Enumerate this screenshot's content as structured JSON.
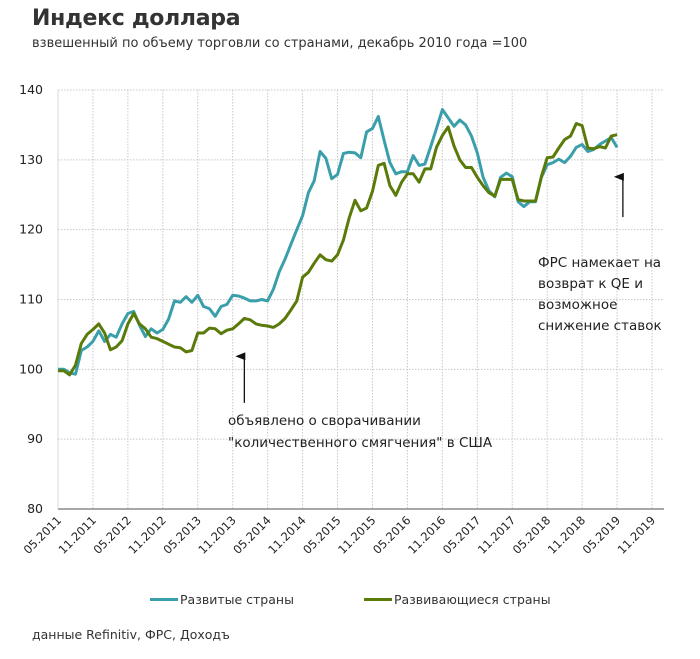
{
  "header": {
    "title": "Индекс доллара",
    "subtitle": "взвешенный по объему торговли со странами, декабрь 2010 года =100"
  },
  "source": "данные  Refinitiv, ФРС, Доходъ",
  "colors": {
    "developed": "#3a9faa",
    "emerging": "#5a7a0a",
    "grid": "#c8c8c8",
    "axis": "#8a8a8a"
  },
  "chart_data": {
    "type": "line",
    "title": "Индекс доллара",
    "subtitle": "взвешенный по объему торговли со странами, декабрь 2010 года =100",
    "xlabel": "",
    "ylabel": "",
    "ylim": [
      80,
      140
    ],
    "y_ticks": [
      "80",
      "90",
      "100",
      "110",
      "120",
      "130",
      "140"
    ],
    "x_ticks": [
      "05.2011",
      "11.2011",
      "05.2012",
      "11.2012",
      "05.2013",
      "11.2013",
      "05.2014",
      "11.2014",
      "05.2015",
      "11.2015",
      "05.2016",
      "11.2016",
      "05.2017",
      "11.2017",
      "05.2018",
      "11.2018",
      "05.2019",
      "11.2019"
    ],
    "x_start": "05.2011",
    "x_step_months": 1,
    "grid": true,
    "legend_position": "bottom",
    "series": [
      {
        "name": "Развитые страны",
        "color_key": "developed",
        "values": [
          100.0,
          100.0,
          99.5,
          99.3,
          102.7,
          103.2,
          104.0,
          105.5,
          104.0,
          105.0,
          104.6,
          106.5,
          108.0,
          108.3,
          106.3,
          104.7,
          105.8,
          105.2,
          105.7,
          107.2,
          109.8,
          109.6,
          110.4,
          109.6,
          110.6,
          109.0,
          108.7,
          107.6,
          109.0,
          109.3,
          110.6,
          110.5,
          110.2,
          109.8,
          109.8,
          110.0,
          109.8,
          111.5,
          114.0,
          115.8,
          117.9,
          120.0,
          122.0,
          125.3,
          127.0,
          131.2,
          130.2,
          127.3,
          127.9,
          130.9,
          131.1,
          131.0,
          130.3,
          134.0,
          134.5,
          136.2,
          132.8,
          129.6,
          128.0,
          128.3,
          128.3,
          130.6,
          129.2,
          129.4,
          131.9,
          134.5,
          137.2,
          136.0,
          134.8,
          135.7,
          135.0,
          133.4,
          131.0,
          127.5,
          125.6,
          124.7,
          127.5,
          128.1,
          127.6,
          124.0,
          123.3,
          124.0,
          124.0,
          127.5,
          129.3,
          129.6,
          130.1,
          129.6,
          130.5,
          131.8,
          132.2,
          131.2,
          131.5,
          132.2,
          132.7,
          133.2,
          131.8
        ],
        "x_offset_months": 0
      },
      {
        "name": "Развивающиеся страны",
        "color_key": "emerging",
        "values": [
          99.8,
          99.8,
          99.2,
          100.6,
          103.7,
          105.0,
          105.7,
          106.5,
          105.2,
          102.8,
          103.2,
          104.1,
          106.5,
          108.0,
          106.5,
          105.8,
          104.6,
          104.4,
          104.0,
          103.6,
          103.2,
          103.1,
          102.5,
          102.7,
          105.2,
          105.2,
          105.9,
          105.8,
          105.1,
          105.6,
          105.8,
          106.5,
          107.3,
          107.1,
          106.5,
          106.3,
          106.2,
          106.0,
          106.5,
          107.3,
          108.5,
          109.8,
          113.2,
          113.9,
          115.2,
          116.4,
          115.7,
          115.5,
          116.4,
          118.5,
          121.7,
          124.2,
          122.7,
          123.1,
          125.5,
          129.2,
          129.5,
          126.3,
          124.9,
          126.8,
          128.0,
          128.0,
          126.8,
          128.7,
          128.7,
          131.8,
          133.5,
          134.7,
          132.0,
          130.0,
          128.9,
          128.9,
          127.5,
          126.3,
          125.3,
          124.8,
          127.2,
          127.2,
          127.2,
          124.3,
          124.1,
          124.1,
          124.1,
          127.6,
          130.3,
          130.4,
          131.7,
          132.9,
          133.4,
          135.2,
          134.9,
          131.7,
          131.6,
          131.9,
          131.7,
          133.4,
          133.6
        ],
        "x_offset_months": 0
      }
    ],
    "annotations": [
      {
        "text_lines": [
          "объявлено о сворачивании",
          "\"количественного смягчения\" в США"
        ],
        "arrow_at": "01.2014",
        "arrow_points_to_value": 103.3,
        "arrow_tail_value": 95.2
      },
      {
        "text_lines": [
          "ФРС намекает на",
          "возврат к QE и",
          "возможное",
          "снижение ставок"
        ],
        "arrow_at": "06.2019",
        "arrow_points_to_value": 129.0,
        "arrow_tail_value": 121.8
      }
    ]
  }
}
